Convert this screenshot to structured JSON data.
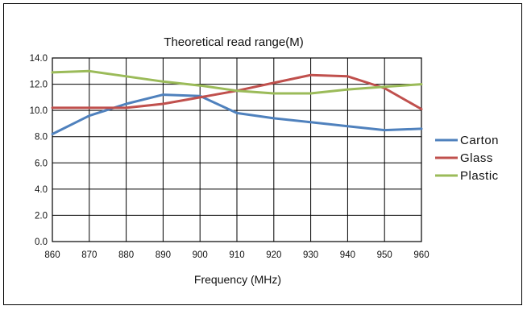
{
  "chart_data": {
    "type": "line",
    "title": "Theoretical read range(M)",
    "xlabel": "Frequency (MHz)",
    "ylabel": "",
    "x": [
      860,
      870,
      880,
      890,
      900,
      910,
      920,
      930,
      940,
      950,
      960
    ],
    "xlim": [
      860,
      960
    ],
    "ylim": [
      0,
      14
    ],
    "yticks": [
      "0.0",
      "2.0",
      "4.0",
      "6.0",
      "8.0",
      "10.0",
      "12.0",
      "14.0"
    ],
    "xticks": [
      "860",
      "870",
      "880",
      "890",
      "900",
      "910",
      "920",
      "930",
      "940",
      "950",
      "960"
    ],
    "grid": "horizontal and vertical",
    "legend_position": "right",
    "series": [
      {
        "name": "Carton",
        "color": "#4F81BD",
        "values": [
          8.2,
          9.6,
          10.5,
          11.2,
          11.1,
          9.8,
          9.4,
          9.1,
          8.8,
          8.5,
          8.6
        ]
      },
      {
        "name": "Glass",
        "color": "#C0504D",
        "values": [
          10.2,
          10.2,
          10.2,
          10.5,
          11.0,
          11.5,
          12.1,
          12.7,
          12.6,
          11.7,
          10.1
        ]
      },
      {
        "name": "Plastic",
        "color": "#9BBB59",
        "values": [
          12.9,
          13.0,
          12.6,
          12.2,
          11.9,
          11.5,
          11.3,
          11.3,
          11.6,
          11.8,
          12.0
        ]
      }
    ]
  }
}
